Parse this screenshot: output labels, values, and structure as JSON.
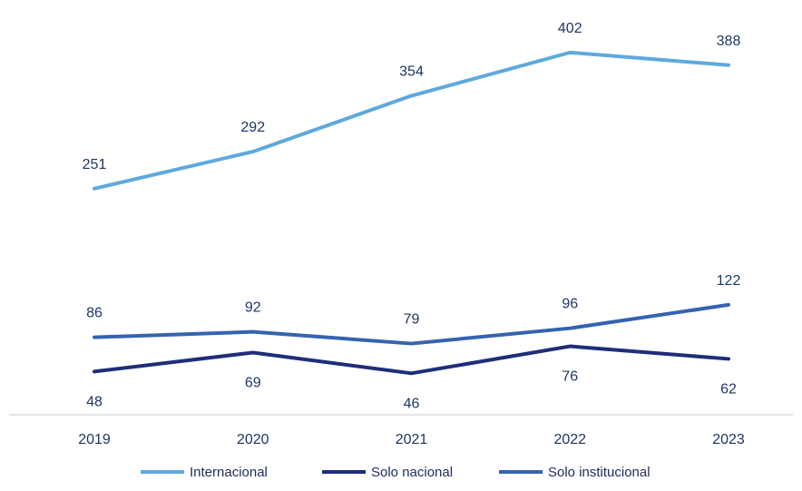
{
  "chart_data": {
    "type": "line",
    "categories": [
      "2019",
      "2020",
      "2021",
      "2022",
      "2023"
    ],
    "ylim": [
      0,
      420
    ],
    "grid": false,
    "legend_position": "bottom",
    "series": [
      {
        "name": "Internacional",
        "values": [
          251,
          292,
          354,
          402,
          388
        ],
        "color": "#5ea9dc",
        "label_position": "above"
      },
      {
        "name": "Solo nacional",
        "values": [
          48,
          69,
          46,
          76,
          62
        ],
        "color": "#1f2d7a",
        "label_position": "below"
      },
      {
        "name": "Solo institucional",
        "values": [
          86,
          92,
          79,
          96,
          122
        ],
        "color": "#3563b0",
        "label_position": "above"
      }
    ],
    "label_color": "#1f3566",
    "axis_color": "#c9c9c9"
  }
}
